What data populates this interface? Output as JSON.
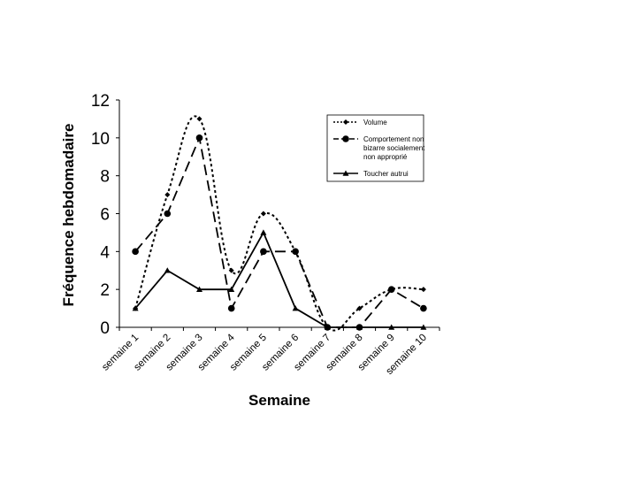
{
  "chart_data": {
    "type": "line",
    "title": "",
    "xlabel": "Semaine",
    "ylabel": "Fréquence hebdomadaire",
    "ylim": [
      0,
      12
    ],
    "yticks": [
      0,
      2,
      4,
      6,
      8,
      10,
      12
    ],
    "categories": [
      "semaine 1",
      "semaine 2",
      "semaine 3",
      "semaine 4",
      "semaine 5",
      "semaine 6",
      "semaine 7",
      "semaine 8",
      "semaine 9",
      "semaine 10"
    ],
    "legend_position": "top-right",
    "grid": false,
    "series": [
      {
        "name": "Volume",
        "values": [
          1,
          7,
          11,
          3,
          6,
          4,
          0,
          1,
          2,
          2
        ],
        "line_style": "dotted",
        "marker": "diamond",
        "curved": true
      },
      {
        "name": "Comportement non bizarre socialement non approprié",
        "legend_lines": [
          "Comportement non",
          "bizarre socialement",
          "non approprié"
        ],
        "values": [
          4,
          6,
          10,
          1,
          4,
          4,
          0,
          0,
          2,
          1
        ],
        "line_style": "dashed",
        "marker": "circle",
        "curved": false
      },
      {
        "name": "Toucher autrui",
        "values": [
          1,
          3,
          2,
          2,
          5,
          1,
          0,
          0,
          0,
          0
        ],
        "line_style": "solid",
        "marker": "triangle",
        "curved": false
      }
    ]
  }
}
